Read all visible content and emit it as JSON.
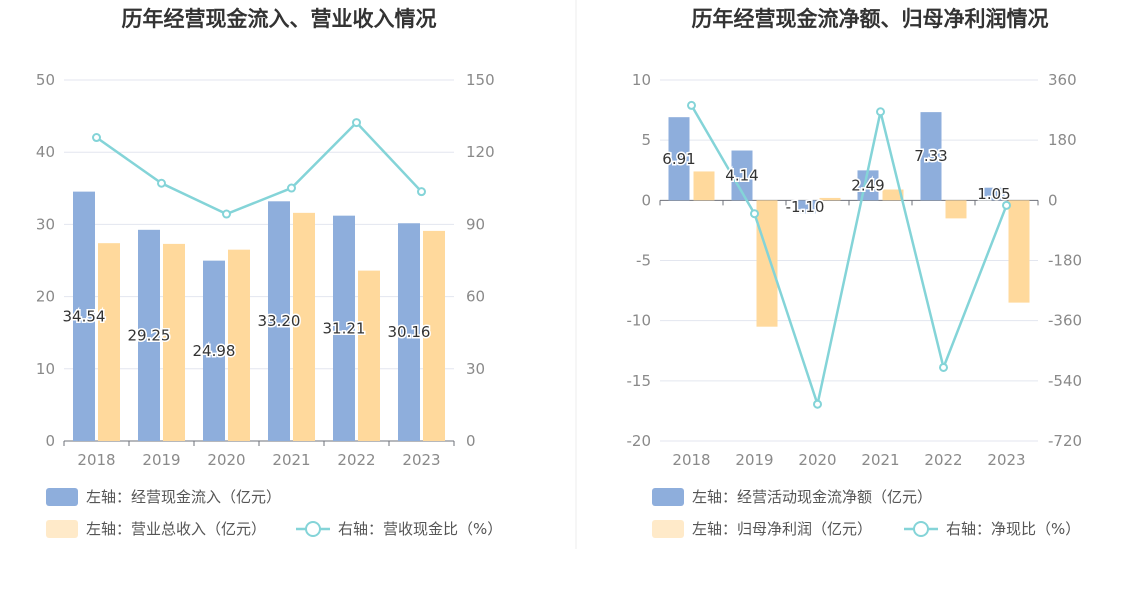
{
  "chart_data": [
    {
      "type": "bar",
      "title": "历年经营现金流入、营业收入情况",
      "categories": [
        "2018",
        "2019",
        "2020",
        "2021",
        "2022",
        "2023"
      ],
      "left_axis": {
        "ticks": [
          "0",
          "10",
          "20",
          "30",
          "40",
          "50"
        ],
        "ylim": [
          0,
          50
        ]
      },
      "right_axis": {
        "ticks": [
          "0",
          "30",
          "60",
          "90",
          "120",
          "150"
        ],
        "ylim": [
          0,
          150
        ]
      },
      "series": [
        {
          "name": "左轴：经营现金流入（亿元）",
          "kind": "bar",
          "axis": "left",
          "color": "#8eaedc",
          "values": [
            34.54,
            29.25,
            24.98,
            33.2,
            31.21,
            30.16
          ],
          "labels": [
            "34.54",
            "29.25",
            "24.98",
            "33.20",
            "31.21",
            "30.16"
          ]
        },
        {
          "name": "左轴：营业总收入（亿元）",
          "kind": "bar",
          "axis": "left",
          "color": "#ffd99c",
          "values": [
            27.4,
            27.3,
            26.5,
            31.6,
            23.6,
            29.1
          ]
        },
        {
          "name": "右轴：营收现金比（%）",
          "kind": "line",
          "axis": "right",
          "color": "#84d4d8",
          "values": [
            126.1,
            107.1,
            94.3,
            105.1,
            132.3,
            103.6
          ]
        }
      ]
    },
    {
      "type": "bar",
      "title": "历年经营现金流净额、归母净利润情况",
      "categories": [
        "2018",
        "2019",
        "2020",
        "2021",
        "2022",
        "2023"
      ],
      "left_axis": {
        "ticks": [
          "-20",
          "-15",
          "-10",
          "-5",
          "0",
          "5",
          "10"
        ],
        "ylim": [
          -20,
          10
        ]
      },
      "right_axis": {
        "ticks": [
          "-720",
          "-540",
          "-360",
          "-180",
          "0",
          "180",
          "360"
        ],
        "ylim": [
          -720,
          360
        ]
      },
      "series": [
        {
          "name": "左轴：经营活动现金流净额（亿元）",
          "kind": "bar",
          "axis": "left",
          "color": "#8eaedc",
          "values": [
            6.91,
            4.14,
            -1.1,
            2.49,
            7.33,
            1.05
          ],
          "labels": [
            "6.91",
            "4.14",
            "-1.10",
            "2.49",
            "7.33",
            "1.05"
          ]
        },
        {
          "name": "左轴：归母净利润（亿元）",
          "kind": "bar",
          "axis": "left",
          "color": "#ffd99c",
          "values": [
            2.4,
            -10.5,
            0.2,
            0.9,
            -1.5,
            -8.5
          ]
        },
        {
          "name": "右轴：净现比（%）",
          "kind": "line",
          "axis": "right",
          "color": "#84d4d8",
          "values": [
            284,
            -40,
            -610,
            265,
            -500,
            -15
          ]
        }
      ]
    }
  ]
}
